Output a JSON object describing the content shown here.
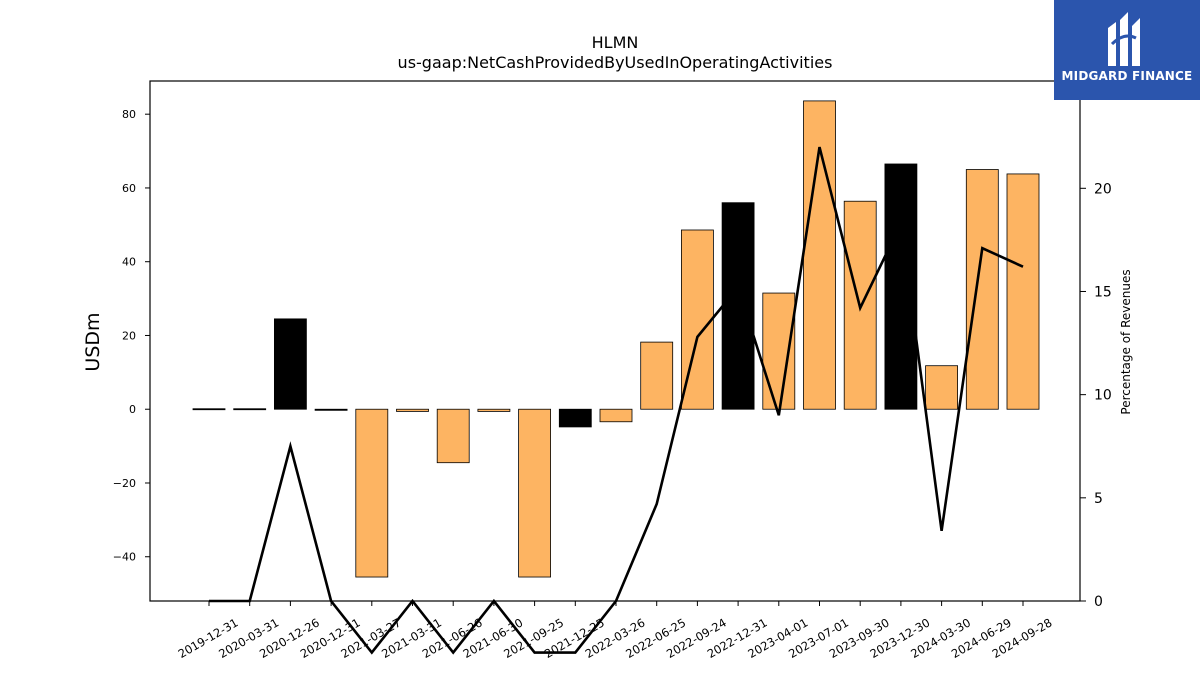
{
  "chart_data": {
    "type": "bar+line",
    "title": "HLMN",
    "subtitle": "us-gaap:NetCashProvidedByUsedInOperatingActivities",
    "ylabel_left": "USDm",
    "ylabel_right": "Percentage of Revenues",
    "ylim_left": [
      -52,
      89
    ],
    "ylim_right": [
      0,
      25.2
    ],
    "yticks_left": [
      -40,
      -20,
      0,
      20,
      40,
      60,
      80
    ],
    "yticks_right": [
      0,
      5,
      10,
      15,
      20
    ],
    "categories": [
      "2019-12-31",
      "2020-03-31",
      "2020-12-26",
      "2020-12-31",
      "2021-03-27",
      "2021-03-31",
      "2021-06-26",
      "2021-06-30",
      "2021-09-25",
      "2021-12-25",
      "2022-03-26",
      "2022-06-25",
      "2022-09-24",
      "2022-12-31",
      "2023-04-01",
      "2023-07-01",
      "2023-09-30",
      "2023-12-30",
      "2024-03-30",
      "2024-06-29",
      "2024-09-28"
    ],
    "bars": {
      "name": "Net cash provided by operating activities (USDm)",
      "values": [
        0,
        0,
        24.5,
        -0.3,
        -45.5,
        -0.6,
        -14.5,
        -0.6,
        -45.5,
        -4.8,
        -3.4,
        18.2,
        48.6,
        56,
        31.5,
        83.6,
        56.4,
        66.5,
        11.8,
        65,
        63.8
      ],
      "colors": [
        "#000000",
        "#000000",
        "#000000",
        "#000000",
        "#fdb462",
        "#fdb462",
        "#fdb462",
        "#fdb462",
        "#fdb462",
        "#000000",
        "#fdb462",
        "#fdb462",
        "#fdb462",
        "#000000",
        "#fdb462",
        "#fdb462",
        "#fdb462",
        "#000000",
        "#fdb462",
        "#fdb462",
        "#fdb462"
      ]
    },
    "line": {
      "name": "Percentage of Revenues",
      "values": [
        0,
        0,
        7.5,
        0,
        -2.5,
        0,
        -2.5,
        0,
        -2.5,
        -2.5,
        0,
        4.7,
        12.8,
        15.2,
        9.0,
        22.0,
        14.2,
        18.3,
        3.4,
        17.1,
        16.2
      ],
      "color": "#000000"
    },
    "grid": false,
    "legend": "none"
  },
  "logo": {
    "name": "MIDGARD FINANCE",
    "background": "#2b55ad"
  }
}
